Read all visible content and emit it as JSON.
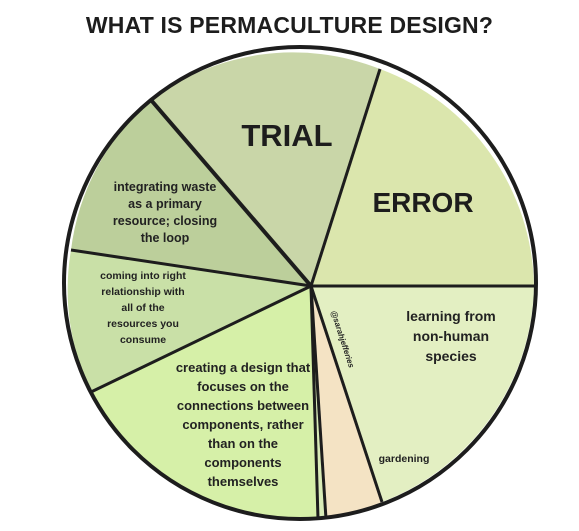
{
  "title": "WHAT IS PERMACULTURE DESIGN?",
  "chart_data": {
    "type": "pie",
    "slices": [
      {
        "label": "TRIAL",
        "lines": [
          "TRIAL"
        ],
        "color": "#c9d6a8"
      },
      {
        "label": "ERROR",
        "lines": [
          "ERROR"
        ],
        "color": "#dbe6ad"
      },
      {
        "label": "learning from non-human species",
        "lines": [
          "learning from",
          "non-human",
          "species"
        ],
        "color": "#e3efc2"
      },
      {
        "label": "gardening",
        "lines": [
          "gardening"
        ],
        "color": "#f4e3c4"
      },
      {
        "label": "@sarahjefferies",
        "lines": [
          "@sarahjefferies"
        ],
        "color": "#d9ecb8"
      },
      {
        "label": "creating a design that focuses on the connections between components, rather than on the components themselves",
        "lines": [
          "creating a design that",
          "focuses on the",
          "connections between",
          "components, rather",
          "than on the",
          "components",
          "themselves"
        ],
        "color": "#d6f0a8"
      },
      {
        "label": "coming into right relationship with all of the resources you consume",
        "lines": [
          "coming into right",
          "relationship with",
          "all of the",
          "resources you",
          "consume"
        ],
        "color": "#c9e0a7"
      },
      {
        "label": "integrating waste as a primary resource; closing the loop",
        "lines": [
          "integrating waste",
          "as a primary",
          "resource; closing",
          "the loop"
        ],
        "color": "#bccf9b"
      }
    ]
  }
}
